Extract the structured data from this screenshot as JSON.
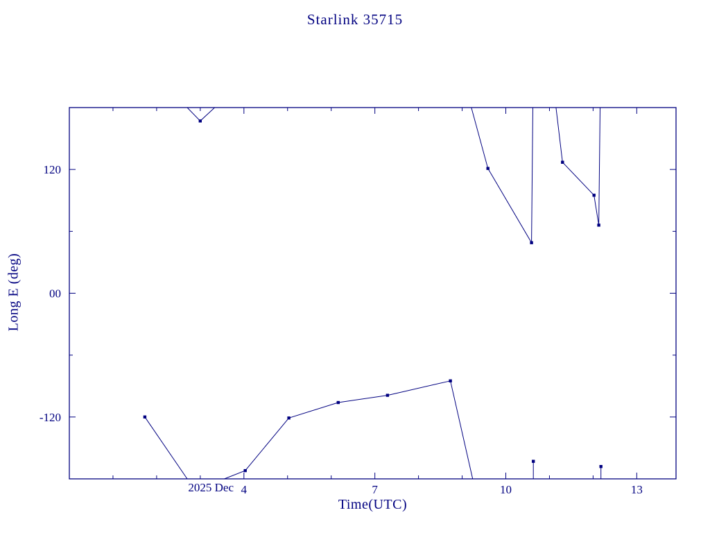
{
  "page": {
    "background_color": "#ffffff",
    "accent_color": "#000080"
  },
  "chart_data": {
    "type": "line",
    "title": "Starlink 35715",
    "xlabel": "Time(UTC)",
    "ylabel": "Long E (deg)",
    "x_prefix_label": "2025 Dec",
    "x_units": "day of December 2025 (UTC)",
    "xlim": [
      0,
      13.9
    ],
    "ylim": [
      -180,
      180
    ],
    "grid": false,
    "legend": "none",
    "series_color": "#000080",
    "marker": "filled-square",
    "x_ticks": [
      {
        "value": 4,
        "label": "4"
      },
      {
        "value": 7,
        "label": "7"
      },
      {
        "value": 10,
        "label": "10"
      },
      {
        "value": 13,
        "label": "13"
      }
    ],
    "x_minor_step": 1,
    "y_ticks": [
      {
        "value": 120,
        "label": "120"
      },
      {
        "value": 0,
        "label": "00"
      },
      {
        "value": -120,
        "label": "-120"
      }
    ],
    "y_minor_ticks": [
      -60,
      60
    ],
    "segments": [
      [
        [
          1.73,
          -120
        ],
        [
          2.7,
          -180
        ]
      ],
      [
        [
          2.7,
          180
        ],
        [
          3.0,
          167
        ],
        [
          3.33,
          180
        ]
      ],
      [
        [
          3.55,
          -180
        ],
        [
          4.03,
          -172
        ],
        [
          5.03,
          -121
        ],
        [
          6.16,
          -106
        ],
        [
          7.29,
          -99
        ],
        [
          8.73,
          -85
        ],
        [
          9.24,
          -180
        ]
      ],
      [
        [
          9.21,
          180
        ],
        [
          9.59,
          121
        ],
        [
          10.59,
          49
        ],
        [
          10.62,
          180
        ]
      ],
      [
        [
          10.63,
          -180
        ],
        [
          10.63,
          -163
        ]
      ],
      [
        [
          11.15,
          180
        ],
        [
          11.3,
          127
        ],
        [
          12.02,
          95
        ],
        [
          12.13,
          66
        ],
        [
          12.16,
          180
        ]
      ],
      [
        [
          12.18,
          -180
        ],
        [
          12.18,
          -168
        ]
      ]
    ],
    "points": [
      [
        1.73,
        -120
      ],
      [
        3.0,
        167
      ],
      [
        4.03,
        -172
      ],
      [
        5.03,
        -121
      ],
      [
        6.16,
        -106
      ],
      [
        7.29,
        -99
      ],
      [
        8.73,
        -85
      ],
      [
        9.59,
        121
      ],
      [
        10.59,
        49
      ],
      [
        10.63,
        -163
      ],
      [
        11.3,
        127
      ],
      [
        12.02,
        95
      ],
      [
        12.13,
        66
      ],
      [
        12.18,
        -168
      ]
    ]
  }
}
